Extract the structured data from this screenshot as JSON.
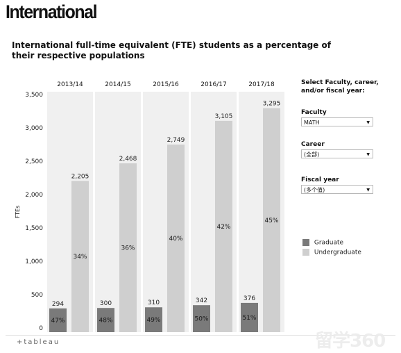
{
  "page": {
    "heading": "International",
    "footer_logo": "+tableau",
    "watermark": "留学360"
  },
  "chart_data": {
    "type": "bar",
    "title": "International full-time equivalent (FTE) students as a percentage of their respective populations",
    "ylabel": "FTEs",
    "xlabel": "",
    "ylim": [
      0,
      3500
    ],
    "yticks": [
      0,
      500,
      1000,
      1500,
      2000,
      2500,
      3000,
      3500
    ],
    "ytick_labels": [
      "0",
      "500",
      "1,000",
      "1,500",
      "2,000",
      "2,500",
      "3,000",
      "3,500"
    ],
    "categories": [
      "2013/14",
      "2014/15",
      "2015/16",
      "2016/17",
      "2017/18"
    ],
    "series": [
      {
        "name": "Graduate",
        "color": "#7a7a7a",
        "values": [
          294,
          300,
          310,
          342,
          376
        ],
        "value_labels": [
          "294",
          "300",
          "310",
          "342",
          "376"
        ],
        "pct_labels": [
          "47%",
          "48%",
          "49%",
          "50%",
          "51%"
        ]
      },
      {
        "name": "Undergraduate",
        "color": "#cfcfcf",
        "values": [
          2205,
          2468,
          2749,
          3105,
          3295
        ],
        "value_labels": [
          "2,205",
          "2,468",
          "2,749",
          "3,105",
          "3,295"
        ],
        "pct_labels": [
          "34%",
          "36%",
          "40%",
          "42%",
          "45%"
        ]
      }
    ],
    "grid": false,
    "legend_position": "right"
  },
  "filters": {
    "prompt": "Select Faculty, career, and/or fiscal year:",
    "faculty": {
      "label": "Faculty",
      "value": "MATH"
    },
    "career": {
      "label": "Career",
      "value": "(全部)"
    },
    "fiscal_year": {
      "label": "Fiscal year",
      "value": "(多个值)"
    }
  },
  "colors": {
    "panel_bg": "#f0f0f0",
    "graduate": "#7a7a7a",
    "undergraduate": "#cfcfcf"
  }
}
